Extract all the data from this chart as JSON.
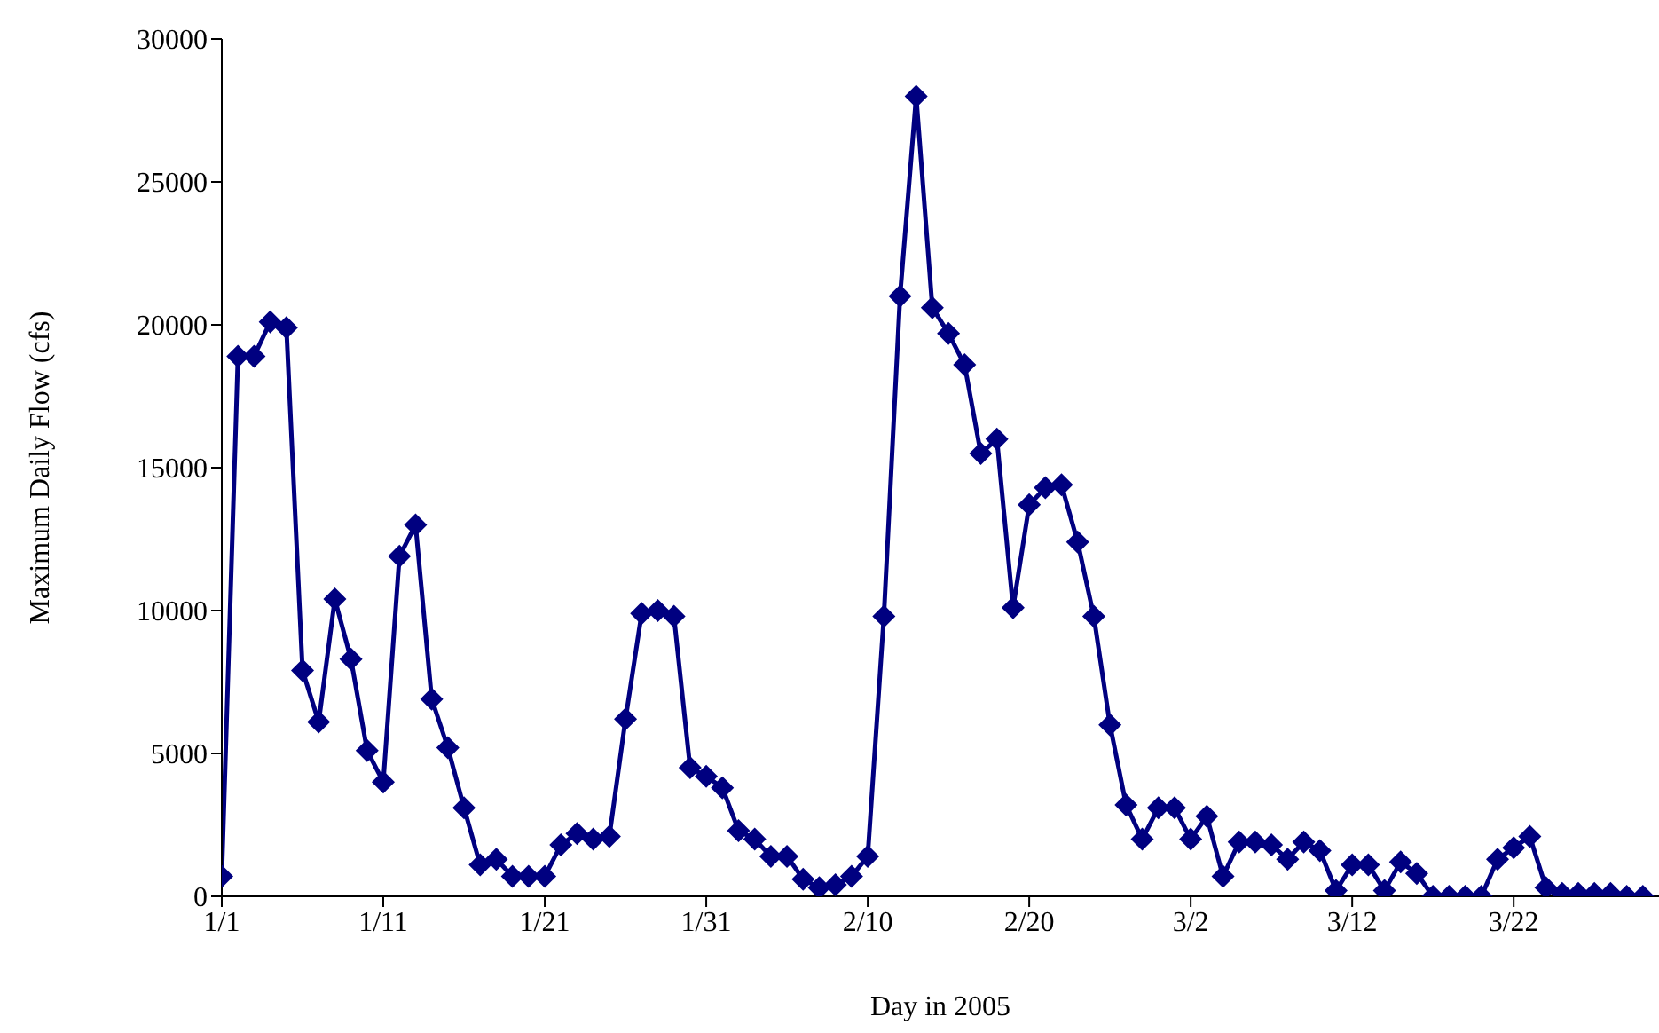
{
  "chart_data": {
    "type": "line",
    "xlabel": "Day in 2005",
    "ylabel": "Maximum Daily Flow (cfs)",
    "x": [
      "2005-01-01",
      "2005-01-02",
      "2005-01-03",
      "2005-01-04",
      "2005-01-05",
      "2005-01-06",
      "2005-01-07",
      "2005-01-08",
      "2005-01-09",
      "2005-01-10",
      "2005-01-11",
      "2005-01-12",
      "2005-01-13",
      "2005-01-14",
      "2005-01-15",
      "2005-01-16",
      "2005-01-17",
      "2005-01-18",
      "2005-01-19",
      "2005-01-20",
      "2005-01-21",
      "2005-01-22",
      "2005-01-23",
      "2005-01-24",
      "2005-01-25",
      "2005-01-26",
      "2005-01-27",
      "2005-01-28",
      "2005-01-29",
      "2005-01-30",
      "2005-01-31",
      "2005-02-01",
      "2005-02-02",
      "2005-02-03",
      "2005-02-04",
      "2005-02-05",
      "2005-02-06",
      "2005-02-07",
      "2005-02-08",
      "2005-02-09",
      "2005-02-10",
      "2005-02-11",
      "2005-02-12",
      "2005-02-13",
      "2005-02-14",
      "2005-02-15",
      "2005-02-16",
      "2005-02-17",
      "2005-02-18",
      "2005-02-19",
      "2005-02-20",
      "2005-02-21",
      "2005-02-22",
      "2005-02-23",
      "2005-02-24",
      "2005-02-25",
      "2005-02-26",
      "2005-02-27",
      "2005-02-28",
      "2005-03-01",
      "2005-03-02",
      "2005-03-03",
      "2005-03-04",
      "2005-03-05",
      "2005-03-06",
      "2005-03-07",
      "2005-03-08",
      "2005-03-09",
      "2005-03-10",
      "2005-03-11",
      "2005-03-12",
      "2005-03-13",
      "2005-03-14",
      "2005-03-15",
      "2005-03-16",
      "2005-03-17",
      "2005-03-18",
      "2005-03-19",
      "2005-03-20",
      "2005-03-21",
      "2005-03-22",
      "2005-03-23",
      "2005-03-24",
      "2005-03-25",
      "2005-03-26",
      "2005-03-27",
      "2005-03-28",
      "2005-03-29",
      "2005-03-30"
    ],
    "series": [
      {
        "color": "#000080",
        "values": [
          700,
          18900,
          18900,
          20100,
          19900,
          7900,
          6100,
          10400,
          8300,
          5100,
          4000,
          11900,
          13000,
          6900,
          5200,
          3100,
          1100,
          1300,
          700,
          700,
          700,
          1800,
          2200,
          2000,
          2100,
          6200,
          9900,
          10000,
          9800,
          4500,
          4200,
          3800,
          2300,
          2000,
          1400,
          1400,
          600,
          300,
          400,
          700,
          1400,
          9800,
          21000,
          28000,
          20600,
          19700,
          18600,
          15500,
          16000,
          10100,
          13700,
          14300,
          14400,
          12400,
          9800,
          6000,
          3200,
          2000,
          3100,
          3100,
          2000,
          2800,
          700,
          1900,
          1900,
          1800,
          1300,
          1900,
          1600,
          200,
          1100,
          1100,
          200,
          1200,
          800,
          0,
          0,
          0,
          0,
          1300,
          1700,
          2100,
          300,
          100,
          100,
          100,
          100,
          0,
          0
        ]
      }
    ],
    "xlim": [
      "2005-01-01",
      "2005-03-31"
    ],
    "xticks": [
      {
        "value": "2005-01-01",
        "label": "1/1"
      },
      {
        "value": "2005-01-11",
        "label": "1/11"
      },
      {
        "value": "2005-01-21",
        "label": "1/21"
      },
      {
        "value": "2005-01-31",
        "label": "1/31"
      },
      {
        "value": "2005-02-10",
        "label": "2/10"
      },
      {
        "value": "2005-02-20",
        "label": "2/20"
      },
      {
        "value": "2005-03-02",
        "label": "3/2"
      },
      {
        "value": "2005-03-12",
        "label": "3/12"
      },
      {
        "value": "2005-03-22",
        "label": "3/22"
      }
    ],
    "ylim": [
      0,
      30000
    ],
    "yticks": [
      0,
      5000,
      10000,
      15000,
      20000,
      25000,
      30000
    ],
    "grid": false,
    "legend": false,
    "marker": "diamond",
    "line_style": "solid"
  }
}
